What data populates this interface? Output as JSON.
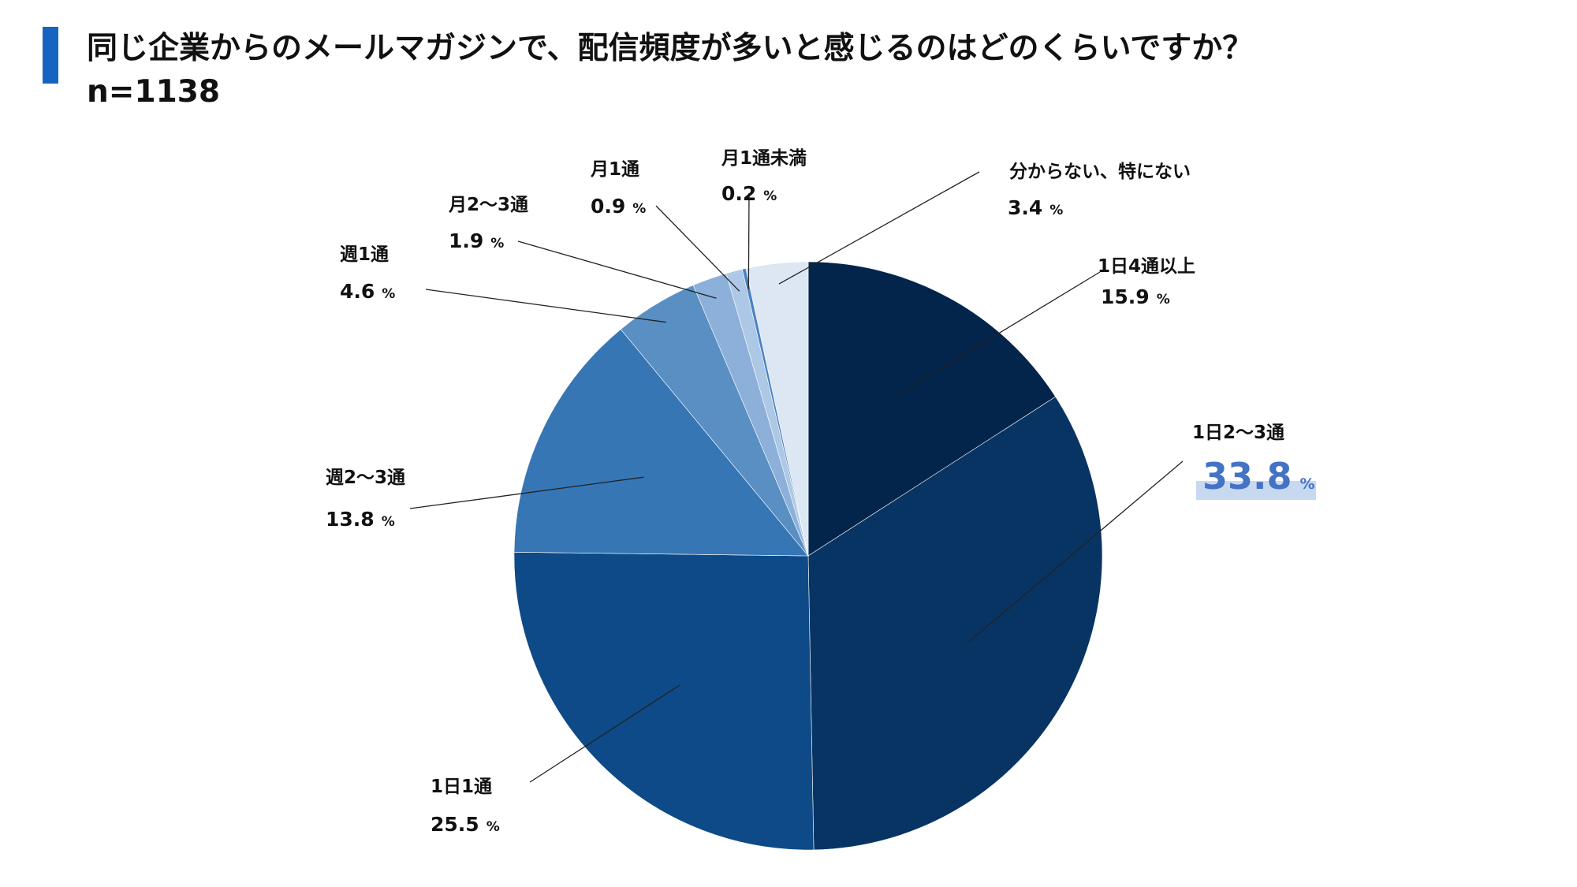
{
  "header": {
    "title": "同じ企業からのメールマガジンで、配信頻度が多いと感じるのはどのくらいですか？",
    "subtitle": "n=1138"
  },
  "chart_data": {
    "type": "pie",
    "percent_symbol": "%",
    "slices": [
      {
        "label": "1日4通以上",
        "value": 15.9,
        "value_text": "15.9",
        "color": "#03254b"
      },
      {
        "label": "1日2〜3通",
        "value": 33.8,
        "value_text": "33.8",
        "color": "#083464",
        "highlight": true
      },
      {
        "label": "1日1通",
        "value": 25.5,
        "value_text": "25.5",
        "color": "#0e4a87"
      },
      {
        "label": "週2〜3通",
        "value": 13.8,
        "value_text": "13.8",
        "color": "#3776b5"
      },
      {
        "label": "週1通",
        "value": 4.6,
        "value_text": "4.6",
        "color": "#5a8fc4"
      },
      {
        "label": "月2〜3通",
        "value": 1.9,
        "value_text": "1.9",
        "color": "#8cb0d9"
      },
      {
        "label": "月1通",
        "value": 0.9,
        "value_text": "0.9",
        "color": "#adc8e6"
      },
      {
        "label": "月1通未満",
        "value": 0.2,
        "value_text": "0.2",
        "color": "#4a82c0"
      },
      {
        "label": "分からない、特にない",
        "value": 3.4,
        "value_text": "3.4",
        "color": "#dce7f3"
      }
    ],
    "highlight_color": "#c6d9f1"
  }
}
